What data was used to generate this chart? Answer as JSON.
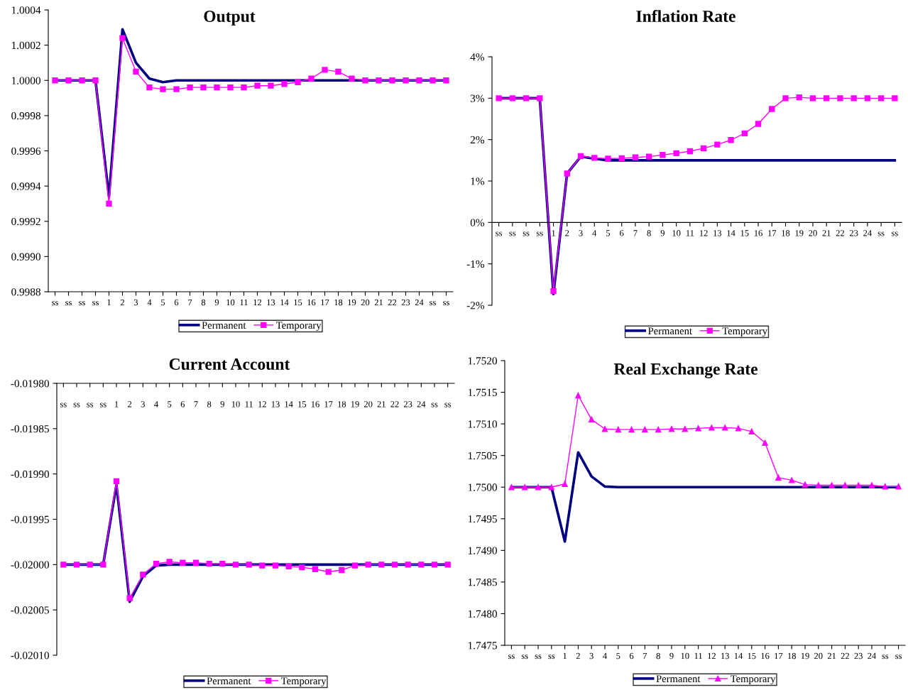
{
  "chart_data": [
    {
      "type": "line",
      "title": "Output",
      "categories": [
        "ss",
        "ss",
        "ss",
        "ss",
        "1",
        "2",
        "3",
        "4",
        "5",
        "6",
        "7",
        "8",
        "9",
        "10",
        "11",
        "12",
        "13",
        "14",
        "15",
        "16",
        "17",
        "18",
        "19",
        "20",
        "21",
        "22",
        "23",
        "24",
        "ss",
        "ss"
      ],
      "series": [
        {
          "name": "Permanent",
          "color": "#000080",
          "marker": "none",
          "values": [
            1.0,
            1.0,
            1.0,
            1.0,
            0.99934,
            1.00029,
            1.0001,
            1.00001,
            0.99999,
            1.0,
            1.0,
            1.0,
            1.0,
            1.0,
            1.0,
            1.0,
            1.0,
            1.0,
            1.0,
            1.0,
            1.0,
            1.0,
            1.0,
            1.0,
            1.0,
            1.0,
            1.0,
            1.0,
            1.0,
            1.0
          ]
        },
        {
          "name": "Temporary",
          "color": "#ff00ff",
          "marker": "square",
          "values": [
            1.0,
            1.0,
            1.0,
            1.0,
            0.9993,
            1.00024,
            1.00005,
            0.99996,
            0.99995,
            0.99995,
            0.99996,
            0.99996,
            0.99996,
            0.99996,
            0.99996,
            0.99997,
            0.99997,
            0.99998,
            0.99999,
            1.00001,
            1.00006,
            1.00005,
            1.00001,
            1.0,
            1.0,
            1.0,
            1.0,
            1.0,
            1.0,
            1.0
          ]
        }
      ],
      "ylim": [
        0.9988,
        1.0004
      ],
      "yticks": [
        0.9988,
        {
          "value": 0.999,
          "label": "0.9990"
        },
        0.9992,
        0.9994,
        0.9996,
        0.9998,
        {
          "value": 1.0,
          "label": "1.0000"
        },
        1.0002,
        1.0004
      ],
      "legend": "bottom",
      "grid": false
    },
    {
      "type": "line",
      "title": "Inflation Rate",
      "categories": [
        "ss",
        "ss",
        "ss",
        "ss",
        "1",
        "2",
        "3",
        "4",
        "5",
        "6",
        "7",
        "8",
        "9",
        "10",
        "11",
        "12",
        "13",
        "14",
        "15",
        "16",
        "17",
        "18",
        "19",
        "20",
        "21",
        "22",
        "23",
        "24",
        "ss",
        "ss"
      ],
      "series": [
        {
          "name": "Permanent",
          "color": "#000080",
          "marker": "none",
          "values": [
            3,
            3,
            3,
            3,
            -1.73,
            1.18,
            1.59,
            1.54,
            1.5,
            1.5,
            1.5,
            1.5,
            1.5,
            1.5,
            1.5,
            1.5,
            1.5,
            1.5,
            1.5,
            1.5,
            1.5,
            1.5,
            1.5,
            1.5,
            1.5,
            1.5,
            1.5,
            1.5,
            1.5,
            1.5
          ]
        },
        {
          "name": "Temporary",
          "color": "#ff00ff",
          "marker": "square",
          "values": [
            3,
            3,
            3,
            3,
            -1.66,
            1.18,
            1.6,
            1.56,
            1.54,
            1.55,
            1.57,
            1.59,
            1.63,
            1.67,
            1.72,
            1.79,
            1.88,
            1.99,
            2.15,
            2.38,
            2.74,
            3.0,
            3.02,
            3.0,
            3.0,
            3.0,
            3.0,
            3.0,
            3.0,
            3.0
          ]
        }
      ],
      "ylim": [
        -2,
        4
      ],
      "yticks": [
        {
          "value": -2,
          "label": "-2%"
        },
        {
          "value": -1,
          "label": "-1%"
        },
        {
          "value": 0,
          "label": "0%"
        },
        {
          "value": 1,
          "label": "1%"
        },
        {
          "value": 2,
          "label": "2%"
        },
        {
          "value": 3,
          "label": "3%"
        },
        {
          "value": 4,
          "label": "4%"
        }
      ],
      "legend": "bottom",
      "grid": false
    },
    {
      "type": "line",
      "title": "Current Account",
      "categories": [
        "ss",
        "ss",
        "ss",
        "ss",
        "1",
        "2",
        "3",
        "4",
        "5",
        "6",
        "7",
        "8",
        "9",
        "10",
        "11",
        "12",
        "13",
        "14",
        "15",
        "16",
        "17",
        "18",
        "19",
        "20",
        "21",
        "22",
        "23",
        "24",
        "ss",
        "ss"
      ],
      "series": [
        {
          "name": "Permanent",
          "color": "#000080",
          "marker": "none",
          "values": [
            -0.02,
            -0.02,
            -0.02,
            -0.02,
            -0.019912,
            -0.020041,
            -0.020013,
            -0.020001,
            -0.02,
            -0.02,
            -0.02,
            -0.02,
            -0.02,
            -0.02,
            -0.02,
            -0.02,
            -0.02,
            -0.02,
            -0.02,
            -0.02,
            -0.02,
            -0.02,
            -0.02,
            -0.02,
            -0.02,
            -0.02,
            -0.02,
            -0.02,
            -0.02,
            -0.02
          ]
        },
        {
          "name": "Temporary",
          "color": "#ff00ff",
          "marker": "square",
          "values": [
            -0.02,
            -0.02,
            -0.02,
            -0.02,
            -0.019908,
            -0.020037,
            -0.020011,
            -0.019999,
            -0.019997,
            -0.019998,
            -0.019998,
            -0.019999,
            -0.019999,
            -0.02,
            -0.02,
            -0.020001,
            -0.020001,
            -0.020002,
            -0.020003,
            -0.020005,
            -0.020008,
            -0.020006,
            -0.020001,
            -0.02,
            -0.02,
            -0.02,
            -0.02,
            -0.02,
            -0.02,
            -0.02
          ]
        }
      ],
      "ylim": [
        -0.0201,
        -0.0198
      ],
      "yticks": [
        {
          "value": -0.0201,
          "label": "-0.02010"
        },
        {
          "value": -0.02005,
          "label": "-0.02005"
        },
        {
          "value": -0.02,
          "label": "-0.02000"
        },
        {
          "value": -0.01995,
          "label": "-0.01995"
        },
        {
          "value": -0.0199,
          "label": "-0.01990"
        },
        {
          "value": -0.01985,
          "label": "-0.01985"
        },
        {
          "value": -0.0198,
          "label": "-0.01980"
        }
      ],
      "legend": "bottom",
      "grid": false
    },
    {
      "type": "line",
      "title": "Real Exchange Rate",
      "categories": [
        "ss",
        "ss",
        "ss",
        "ss",
        "1",
        "2",
        "3",
        "4",
        "5",
        "6",
        "7",
        "8",
        "9",
        "10",
        "11",
        "12",
        "13",
        "14",
        "15",
        "16",
        "17",
        "18",
        "19",
        "20",
        "21",
        "22",
        "23",
        "24",
        "ss",
        "ss"
      ],
      "series": [
        {
          "name": "Permanent",
          "color": "#000080",
          "marker": "none",
          "values": [
            1.75,
            1.75,
            1.75,
            1.75,
            1.74914,
            1.75055,
            1.75017,
            1.75001,
            1.75,
            1.75,
            1.75,
            1.75,
            1.75,
            1.75,
            1.75,
            1.75,
            1.75,
            1.75,
            1.75,
            1.75,
            1.75,
            1.75,
            1.75,
            1.75,
            1.75,
            1.75,
            1.75,
            1.75,
            1.75,
            1.75
          ]
        },
        {
          "name": "Temporary",
          "color": "#ff00ff",
          "marker": "triangle",
          "values": [
            1.75,
            1.75,
            1.75,
            1.75,
            1.75005,
            1.75145,
            1.75107,
            1.75092,
            1.75091,
            1.75091,
            1.75091,
            1.75091,
            1.75092,
            1.75092,
            1.75093,
            1.75094,
            1.75094,
            1.75093,
            1.75088,
            1.7507,
            1.75015,
            1.75011,
            1.75004,
            1.75003,
            1.75003,
            1.75003,
            1.75003,
            1.75003,
            1.75001,
            1.75001
          ]
        }
      ],
      "ylim": [
        1.7475,
        1.752
      ],
      "yticks": [
        {
          "value": 1.7475,
          "label": "1.7475"
        },
        {
          "value": 1.748,
          "label": "1.7480"
        },
        {
          "value": 1.7485,
          "label": "1.7485"
        },
        {
          "value": 1.749,
          "label": "1.7490"
        },
        {
          "value": 1.7495,
          "label": "1.7495"
        },
        {
          "value": 1.75,
          "label": "1.7500"
        },
        {
          "value": 1.7505,
          "label": "1.7505"
        },
        {
          "value": 1.751,
          "label": "1.7510"
        },
        {
          "value": 1.7515,
          "label": "1.7515"
        },
        {
          "value": 1.752,
          "label": "1.7520"
        }
      ],
      "legend": "bottom",
      "grid": false
    }
  ]
}
